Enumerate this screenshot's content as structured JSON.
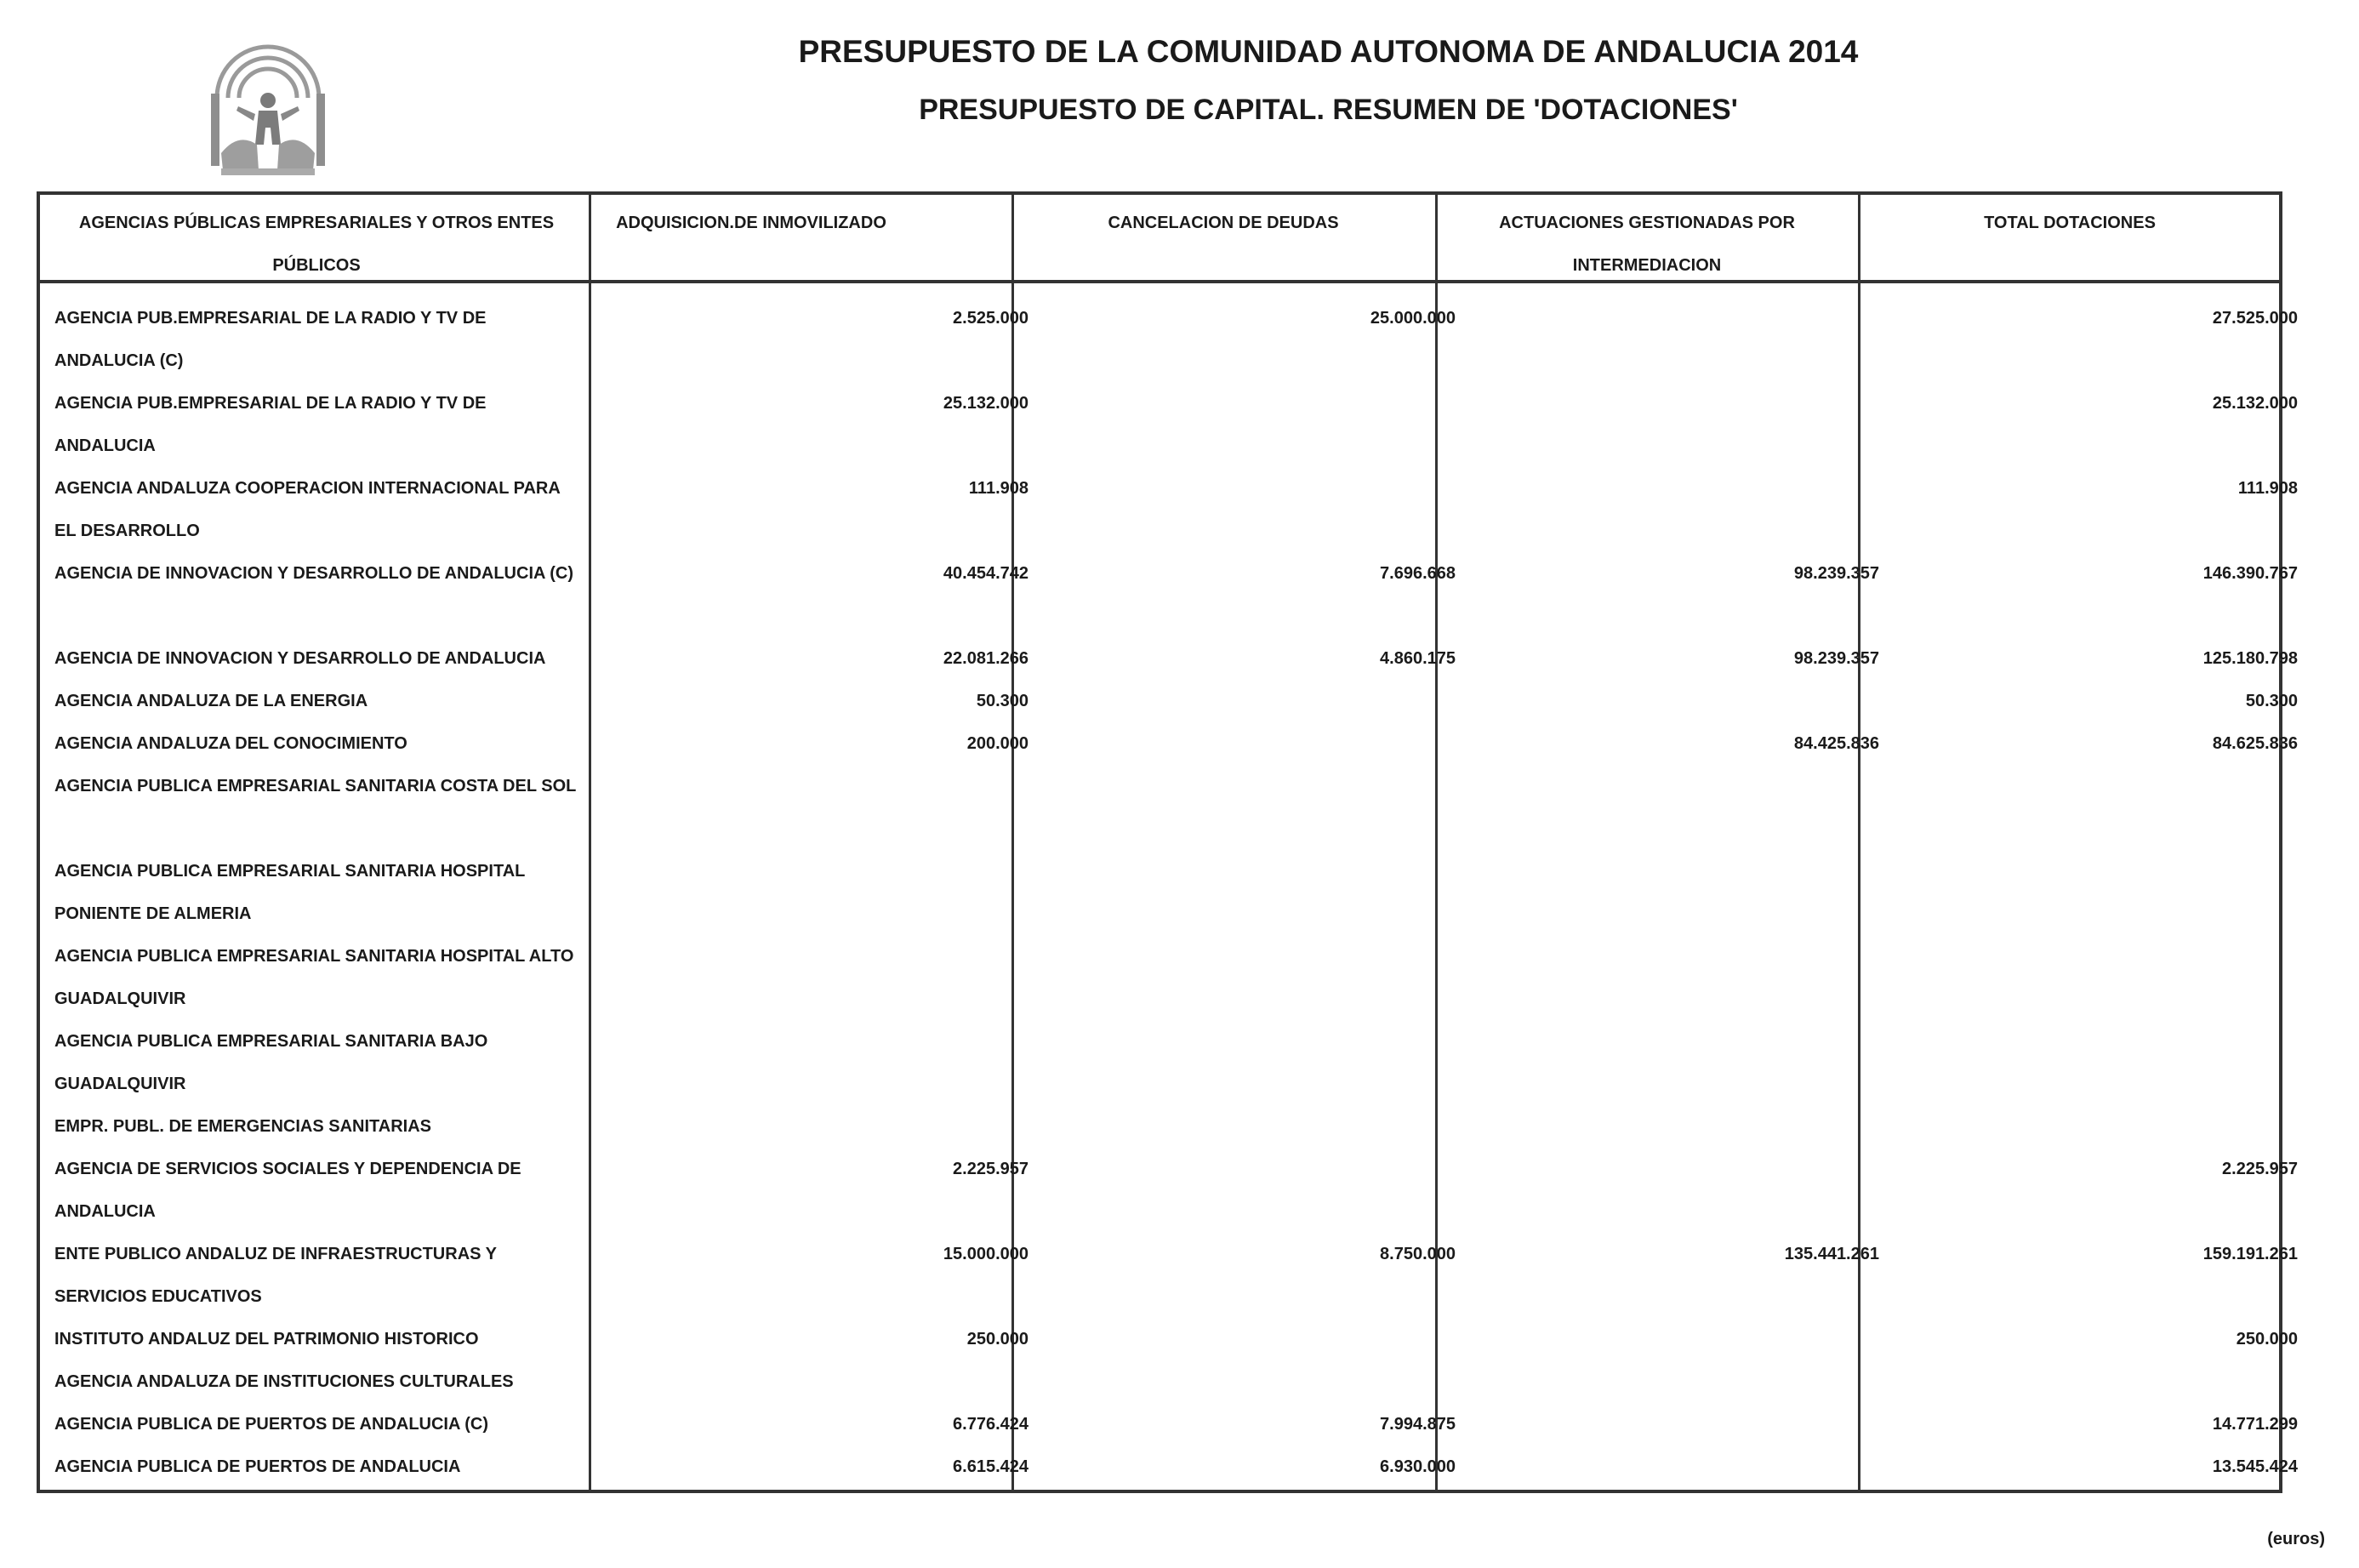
{
  "header": {
    "title": "PRESUPUESTO DE LA COMUNIDAD AUTONOMA DE ANDALUCIA 2014",
    "subtitle": "PRESUPUESTO DE CAPITAL. RESUMEN DE 'DOTACIONES'"
  },
  "table": {
    "columns": [
      "AGENCIAS PÚBLICAS EMPRESARIALES Y OTROS ENTES PÚBLICOS",
      "ADQUISICION.DE INMOVILIZADO",
      "CANCELACION DE DEUDAS",
      "ACTUACIONES GESTIONADAS POR INTERMEDIACION",
      "TOTAL DOTACIONES"
    ],
    "rows": [
      {
        "name": "AGENCIA PUB.EMPRESARIAL DE LA RADIO Y TV DE ANDALUCIA (C)",
        "adq": "2.525.000",
        "canc": "25.000.000",
        "act": "",
        "total": "27.525.000"
      },
      {
        "name": "AGENCIA PUB.EMPRESARIAL DE LA RADIO Y TV DE ANDALUCIA",
        "adq": "25.132.000",
        "canc": "",
        "act": "",
        "total": "25.132.000"
      },
      {
        "name": "AGENCIA ANDALUZA COOPERACION INTERNACIONAL PARA EL DESARROLLO",
        "adq": "111.908",
        "canc": "",
        "act": "",
        "total": "111.908"
      },
      {
        "name": "AGENCIA DE INNOVACION Y DESARROLLO DE ANDALUCIA (C)",
        "adq": "40.454.742",
        "canc": "7.696.668",
        "act": "98.239.357",
        "total": "146.390.767"
      },
      {
        "name": "AGENCIA DE INNOVACION Y DESARROLLO DE ANDALUCIA",
        "adq": "22.081.266",
        "canc": "4.860.175",
        "act": "98.239.357",
        "total": "125.180.798"
      },
      {
        "name": "AGENCIA ANDALUZA DE LA ENERGIA",
        "adq": "50.300",
        "canc": "",
        "act": "",
        "total": "50.300"
      },
      {
        "name": "AGENCIA ANDALUZA DEL CONOCIMIENTO",
        "adq": "200.000",
        "canc": "",
        "act": "84.425.836",
        "total": "84.625.836"
      },
      {
        "name": "AGENCIA PUBLICA EMPRESARIAL SANITARIA COSTA DEL SOL",
        "adq": "",
        "canc": "",
        "act": "",
        "total": ""
      },
      {
        "name": "AGENCIA PUBLICA EMPRESARIAL SANITARIA HOSPITAL PONIENTE DE ALMERIA",
        "adq": "",
        "canc": "",
        "act": "",
        "total": ""
      },
      {
        "name": "AGENCIA PUBLICA EMPRESARIAL SANITARIA HOSPITAL ALTO GUADALQUIVIR",
        "adq": "",
        "canc": "",
        "act": "",
        "total": ""
      },
      {
        "name": "AGENCIA PUBLICA EMPRESARIAL SANITARIA BAJO GUADALQUIVIR",
        "adq": "",
        "canc": "",
        "act": "",
        "total": ""
      },
      {
        "name": "EMPR. PUBL. DE EMERGENCIAS SANITARIAS",
        "adq": "",
        "canc": "",
        "act": "",
        "total": ""
      },
      {
        "name": "AGENCIA DE SERVICIOS SOCIALES Y DEPENDENCIA DE ANDALUCIA",
        "adq": "2.225.957",
        "canc": "",
        "act": "",
        "total": "2.225.957"
      },
      {
        "name": "ENTE PUBLICO ANDALUZ DE INFRAESTRUCTURAS Y SERVICIOS EDUCATIVOS",
        "adq": "15.000.000",
        "canc": "8.750.000",
        "act": "135.441.261",
        "total": "159.191.261"
      },
      {
        "name": "INSTITUTO ANDALUZ DEL PATRIMONIO HISTORICO",
        "adq": "250.000",
        "canc": "",
        "act": "",
        "total": "250.000"
      },
      {
        "name": "AGENCIA ANDALUZA DE INSTITUCIONES CULTURALES",
        "adq": "",
        "canc": "",
        "act": "",
        "total": ""
      },
      {
        "name": "AGENCIA PUBLICA DE PUERTOS DE ANDALUCIA (C)",
        "adq": "6.776.424",
        "canc": "7.994.875",
        "act": "",
        "total": "14.771.299"
      },
      {
        "name": "AGENCIA PUBLICA DE PUERTOS DE ANDALUCIA",
        "adq": "6.615.424",
        "canc": "6.930.000",
        "act": "",
        "total": "13.545.424"
      }
    ]
  },
  "footer": {
    "unit": "(euros)"
  }
}
